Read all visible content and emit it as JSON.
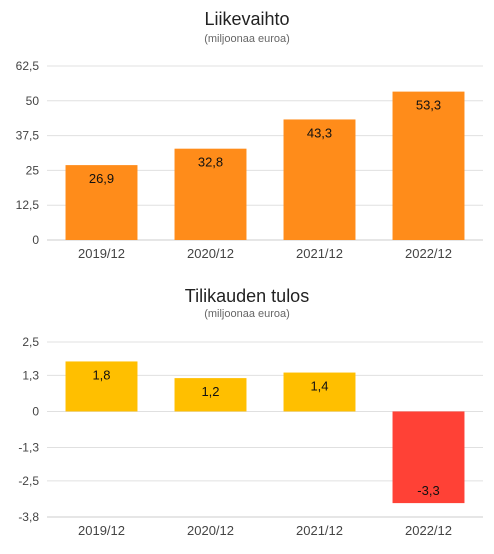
{
  "chart_data": [
    {
      "type": "bar",
      "title": "Liikevaihto",
      "subtitle": "(miljoonaa euroa)",
      "categories": [
        "2019/12",
        "2020/12",
        "2021/12",
        "2022/12"
      ],
      "values": [
        26.9,
        32.8,
        43.3,
        53.3
      ],
      "value_labels": [
        "26,9",
        "32,8",
        "43,3",
        "53,3"
      ],
      "ylim": [
        0,
        62.5
      ],
      "yticks": [
        0,
        12.5,
        25,
        37.5,
        50,
        62.5
      ],
      "ytick_labels": [
        "0",
        "12,5",
        "25",
        "37,5",
        "50",
        "62,5"
      ],
      "grid": true,
      "bar_colors": [
        "#ff8c1a",
        "#ff8c1a",
        "#ff8c1a",
        "#ff8c1a"
      ]
    },
    {
      "type": "bar",
      "title": "Tilikauden tulos",
      "subtitle": "(miljoonaa euroa)",
      "categories": [
        "2019/12",
        "2020/12",
        "2021/12",
        "2022/12"
      ],
      "values": [
        1.8,
        1.2,
        1.4,
        -3.3
      ],
      "value_labels": [
        "1,8",
        "1,2",
        "1,4",
        "-3,3"
      ],
      "ylim": [
        -3.8,
        2.5
      ],
      "yticks": [
        -3.8,
        -2.5,
        -1.3,
        0,
        1.3,
        2.5
      ],
      "ytick_labels": [
        "-3,8",
        "-2,5",
        "-1,3",
        "0",
        "1,3",
        "2,5"
      ],
      "grid": true,
      "bar_colors": [
        "#ffbf00",
        "#ffbf00",
        "#ffbf00",
        "#ff4136"
      ]
    }
  ]
}
